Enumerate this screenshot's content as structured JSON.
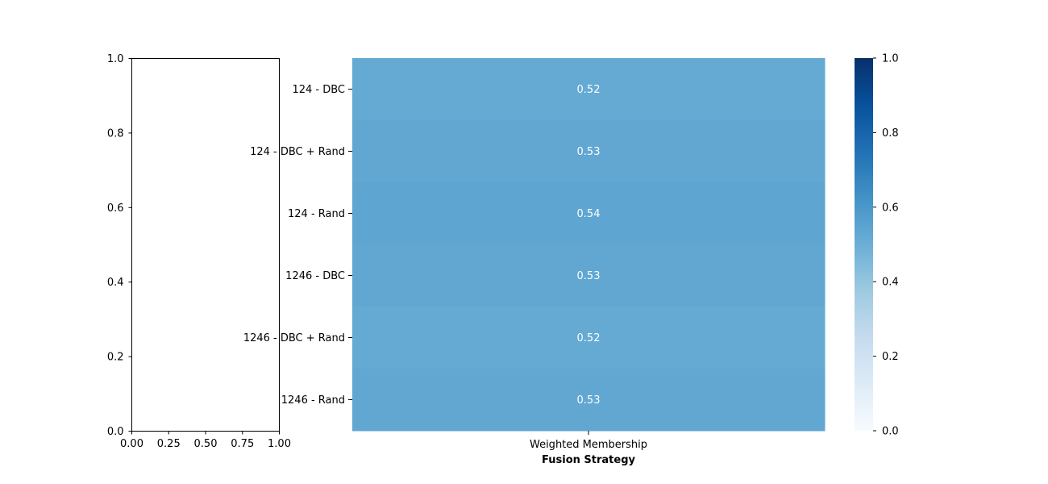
{
  "chart_data": [
    {
      "type": "line",
      "title": "",
      "xlabel": "",
      "ylabel": "",
      "xlim": [
        0,
        1
      ],
      "ylim": [
        0,
        1
      ],
      "x_ticks": [
        "0.00",
        "0.25",
        "0.50",
        "0.75",
        "1.00"
      ],
      "y_ticks": [
        "0.0",
        "0.2",
        "0.4",
        "0.6",
        "0.8",
        "1.0"
      ],
      "series": []
    },
    {
      "type": "heatmap",
      "title": "",
      "xlabel": "Fusion Strategy",
      "ylabel": "",
      "columns": [
        "Weighted Membership"
      ],
      "rows": [
        "124 - DBC",
        "124 - DBC + Rand",
        "124 - Rand",
        "1246 - DBC",
        "1246 - DBC + Rand",
        "1246 - Rand"
      ],
      "values": [
        [
          0.52
        ],
        [
          0.53
        ],
        [
          0.54
        ],
        [
          0.53
        ],
        [
          0.52
        ],
        [
          0.53
        ]
      ],
      "value_labels": [
        "0.52",
        "0.53",
        "0.54",
        "0.53",
        "0.52",
        "0.53"
      ],
      "colormap": "Blues",
      "vmin": 0,
      "vmax": 1,
      "colorbar_ticks": [
        "0.0",
        "0.2",
        "0.4",
        "0.6",
        "0.8",
        "1.0"
      ]
    }
  ]
}
